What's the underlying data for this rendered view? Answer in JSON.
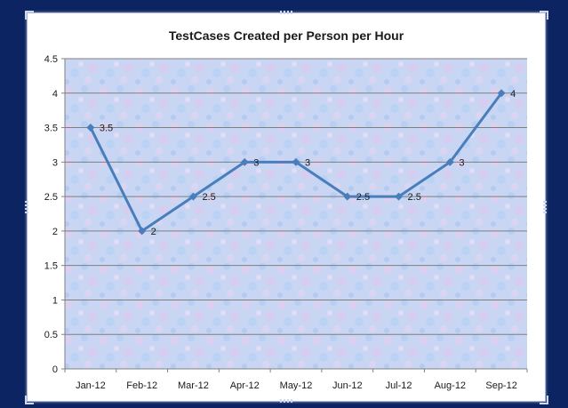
{
  "chart_data": {
    "type": "line",
    "title": "TestCases Created per Person per Hour",
    "xlabel": "",
    "ylabel": "",
    "categories": [
      "Jan-12",
      "Feb-12",
      "Mar-12",
      "Apr-12",
      "May-12",
      "Jun-12",
      "Jul-12",
      "Aug-12",
      "Sep-12"
    ],
    "series": [
      {
        "values": [
          3.5,
          2,
          2.5,
          3,
          3,
          2.5,
          2.5,
          3,
          4
        ]
      }
    ],
    "data_labels": [
      "3.5",
      "2",
      "2.5",
      "3",
      "3",
      "2.5",
      "2.5",
      "3",
      "4"
    ],
    "ylim": [
      0,
      4.5
    ],
    "yticks": [
      "0",
      "0.5",
      "1",
      "1.5",
      "2",
      "2.5",
      "3",
      "3.5",
      "4",
      "4.5"
    ],
    "grid": true,
    "legend": "none",
    "colors": {
      "line": "#4a7ebb",
      "grid": "#7f7f7f",
      "plot_bg": "#c5d3f2"
    }
  }
}
